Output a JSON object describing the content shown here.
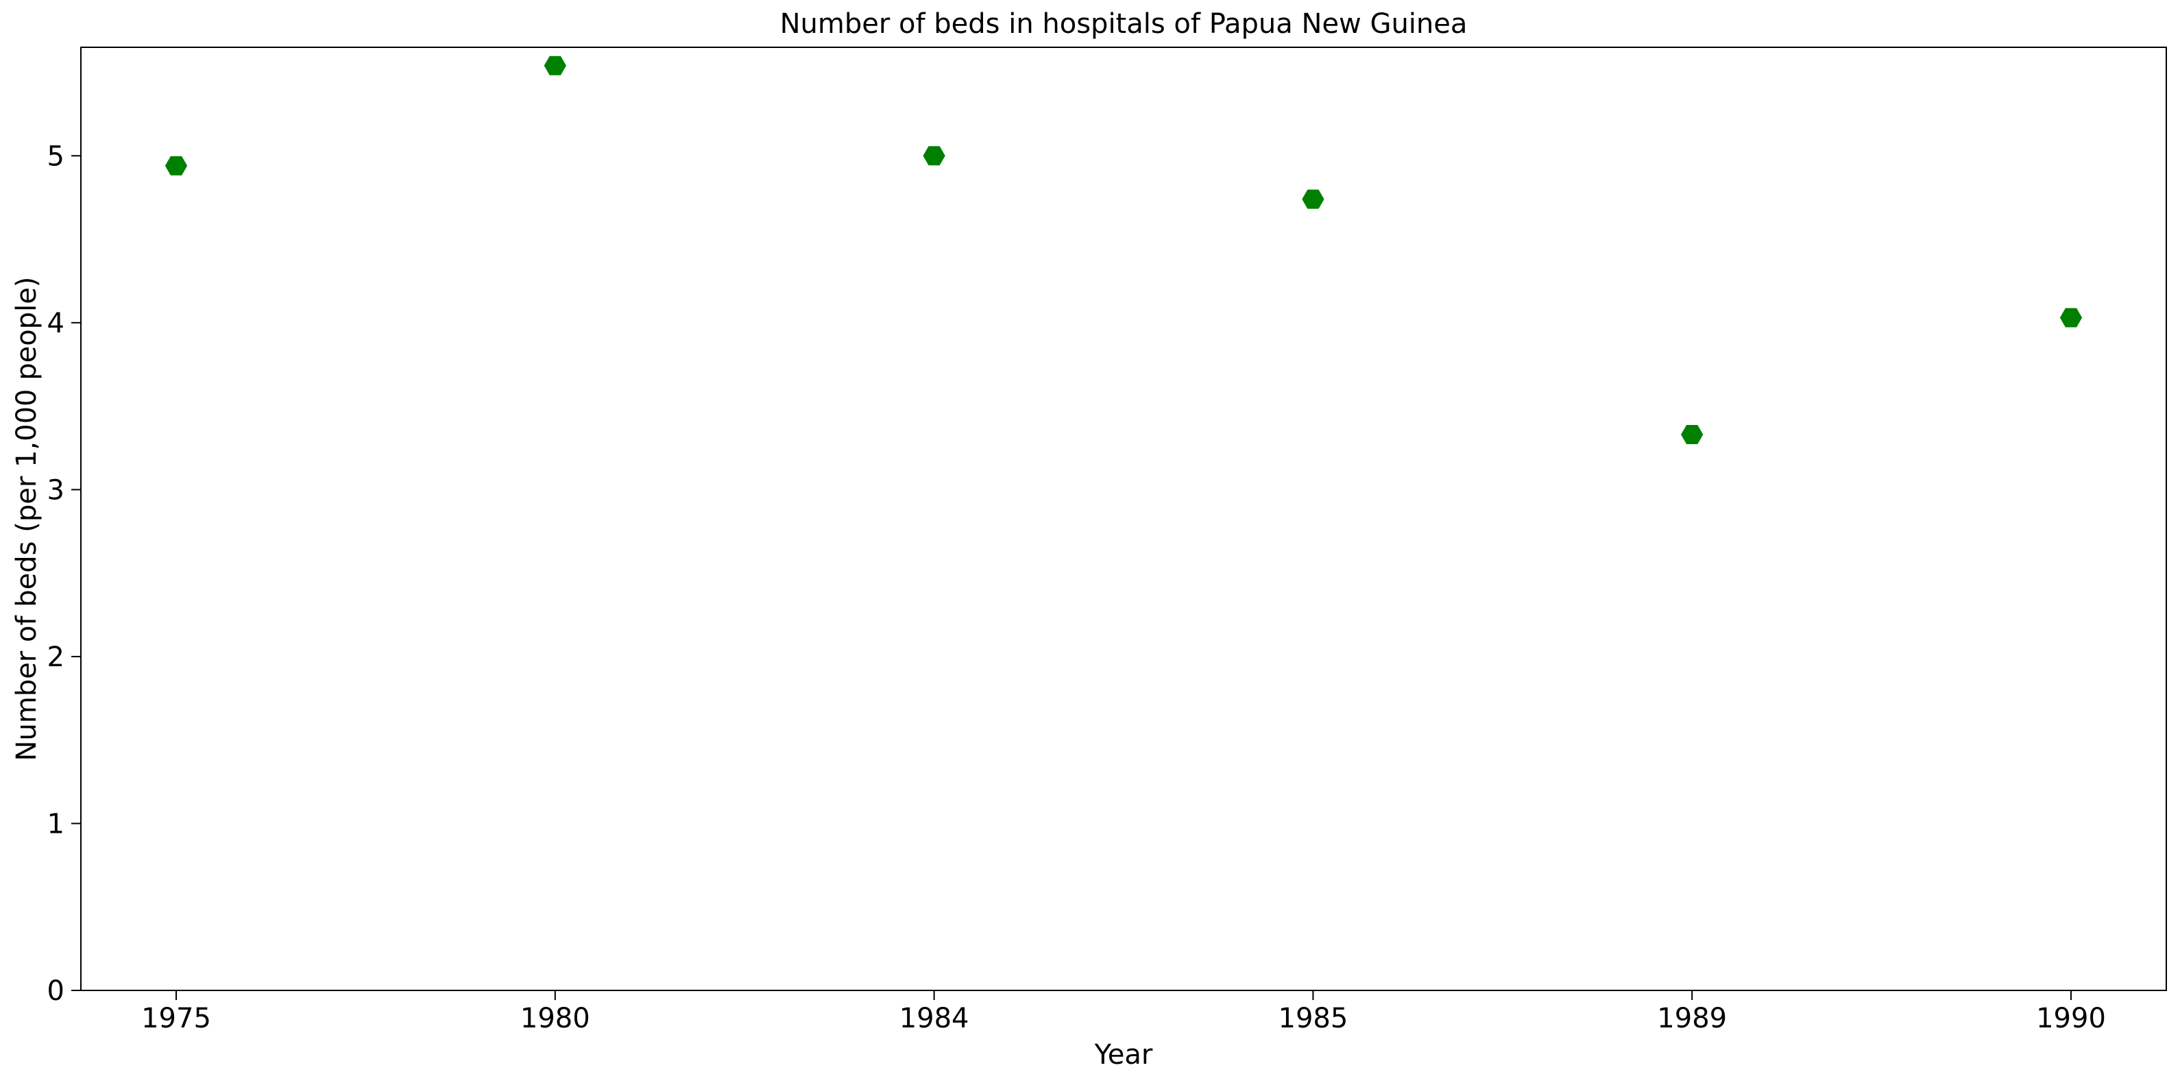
{
  "chart_data": {
    "type": "scatter",
    "title": "Number of beds in hospitals of Papua New Guinea",
    "xlabel": "Year",
    "ylabel": "Number of beds (per 1,000 people)",
    "categories": [
      "1975",
      "1980",
      "1984",
      "1985",
      "1989",
      "1990"
    ],
    "values": [
      4.94,
      5.54,
      5.0,
      4.74,
      3.33,
      4.03
    ],
    "ylim": [
      0,
      5.65
    ],
    "yticks": [
      "0",
      "1",
      "2",
      "3",
      "4",
      "5"
    ],
    "grid": false,
    "marker": "hexagon",
    "marker_color": "#008000"
  }
}
